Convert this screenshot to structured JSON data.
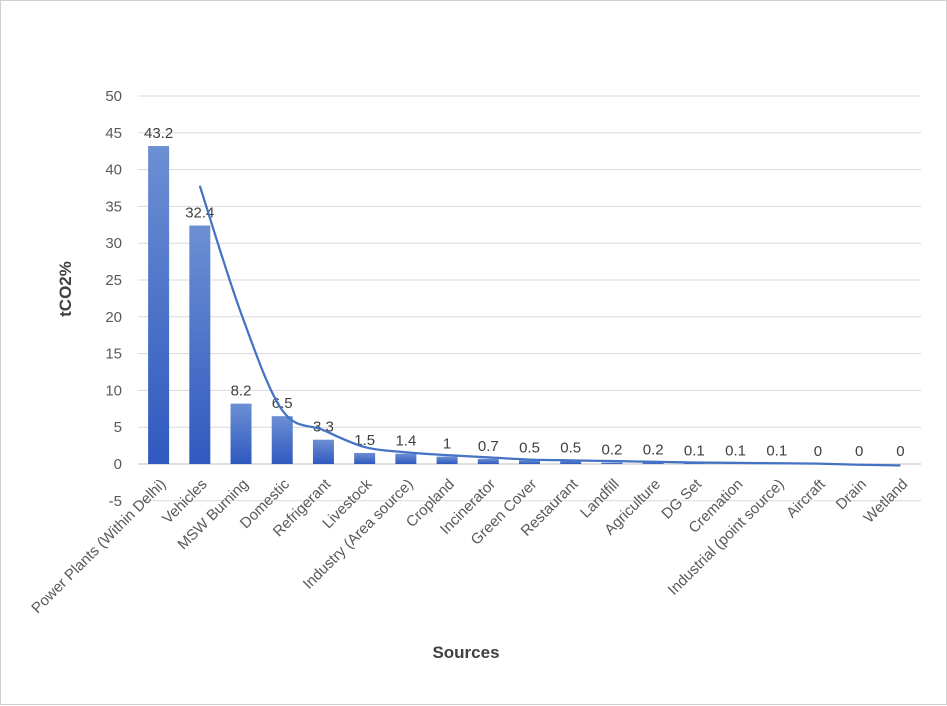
{
  "chart_data": {
    "type": "bar",
    "title": "",
    "xlabel": "Sources",
    "ylabel": "tCO2%",
    "ylim": [
      -5,
      50
    ],
    "ytick_step": 5,
    "grid": true,
    "legend": "none",
    "categories": [
      "Power Plants (Within Delhi)",
      "Vehicles",
      "MSW Burning",
      "Domestic",
      "Refrigerant",
      "Livestock",
      "Industry (Area source)",
      "Cropland",
      "Incinerator",
      "Green Cover",
      "Restaurant",
      "Landfill",
      "Agriculture",
      "DG Set",
      "Cremation",
      "Industrial (point source)",
      "Aircraft",
      "Drain",
      "Wetland"
    ],
    "values": [
      43.2,
      32.4,
      8.2,
      6.5,
      3.3,
      1.5,
      1.4,
      1,
      0.7,
      0.5,
      0.5,
      0.2,
      0.2,
      0.1,
      0.1,
      0.1,
      0,
      0,
      0
    ],
    "data_labels": [
      "43.2",
      "32.4",
      "8.2",
      "6.5",
      "3.3",
      "1.5",
      "1.4",
      "1",
      "0.7",
      "0.5",
      "0.5",
      "0.2",
      "0.2",
      "0.1",
      "0.1",
      "0.1",
      "0",
      "0",
      "0"
    ],
    "trendline": {
      "x_start_index": 1,
      "values": [
        37.8,
        20.5,
        7.3,
        4.6,
        2.3,
        1.6,
        1.2,
        0.9,
        0.6,
        0.5,
        0.4,
        0.3,
        0.2,
        0.15,
        0.1,
        0.05,
        -0.1,
        -0.2
      ]
    },
    "colors": {
      "bar_top": "#6c8fd3",
      "bar_bottom": "#2f59bf",
      "trendline": "#4472c4"
    }
  }
}
